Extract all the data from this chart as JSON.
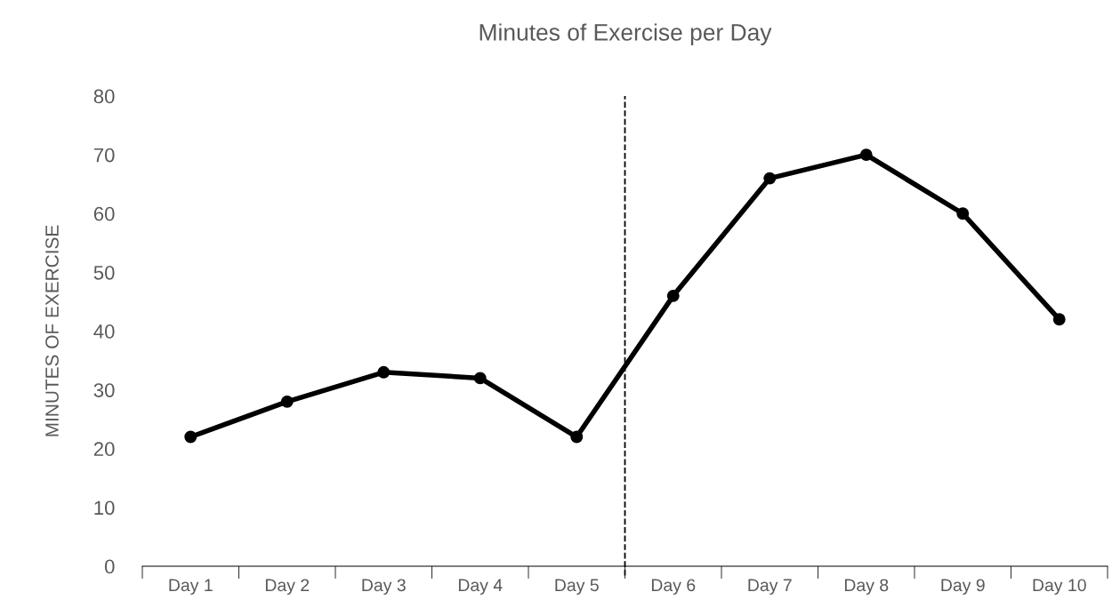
{
  "chart_data": {
    "type": "line",
    "title": "Minutes of Exercise per Day",
    "ylabel": "MINUTES OF EXERCISE",
    "categories": [
      "Day 1",
      "Day 2",
      "Day 3",
      "Day 4",
      "Day 5",
      "Day 6",
      "Day 7",
      "Day 8",
      "Day 9",
      "Day 10"
    ],
    "series": [
      {
        "color": "#000000",
        "values": [
          22,
          28,
          33,
          32,
          22,
          46,
          66,
          70,
          60,
          42
        ]
      }
    ],
    "ylim": [
      0,
      80
    ],
    "yticks": [
      0,
      10,
      20,
      30,
      40,
      50,
      60,
      70,
      80
    ],
    "marker": "circle",
    "line_style": "solid",
    "grid": false,
    "legend": false
  }
}
